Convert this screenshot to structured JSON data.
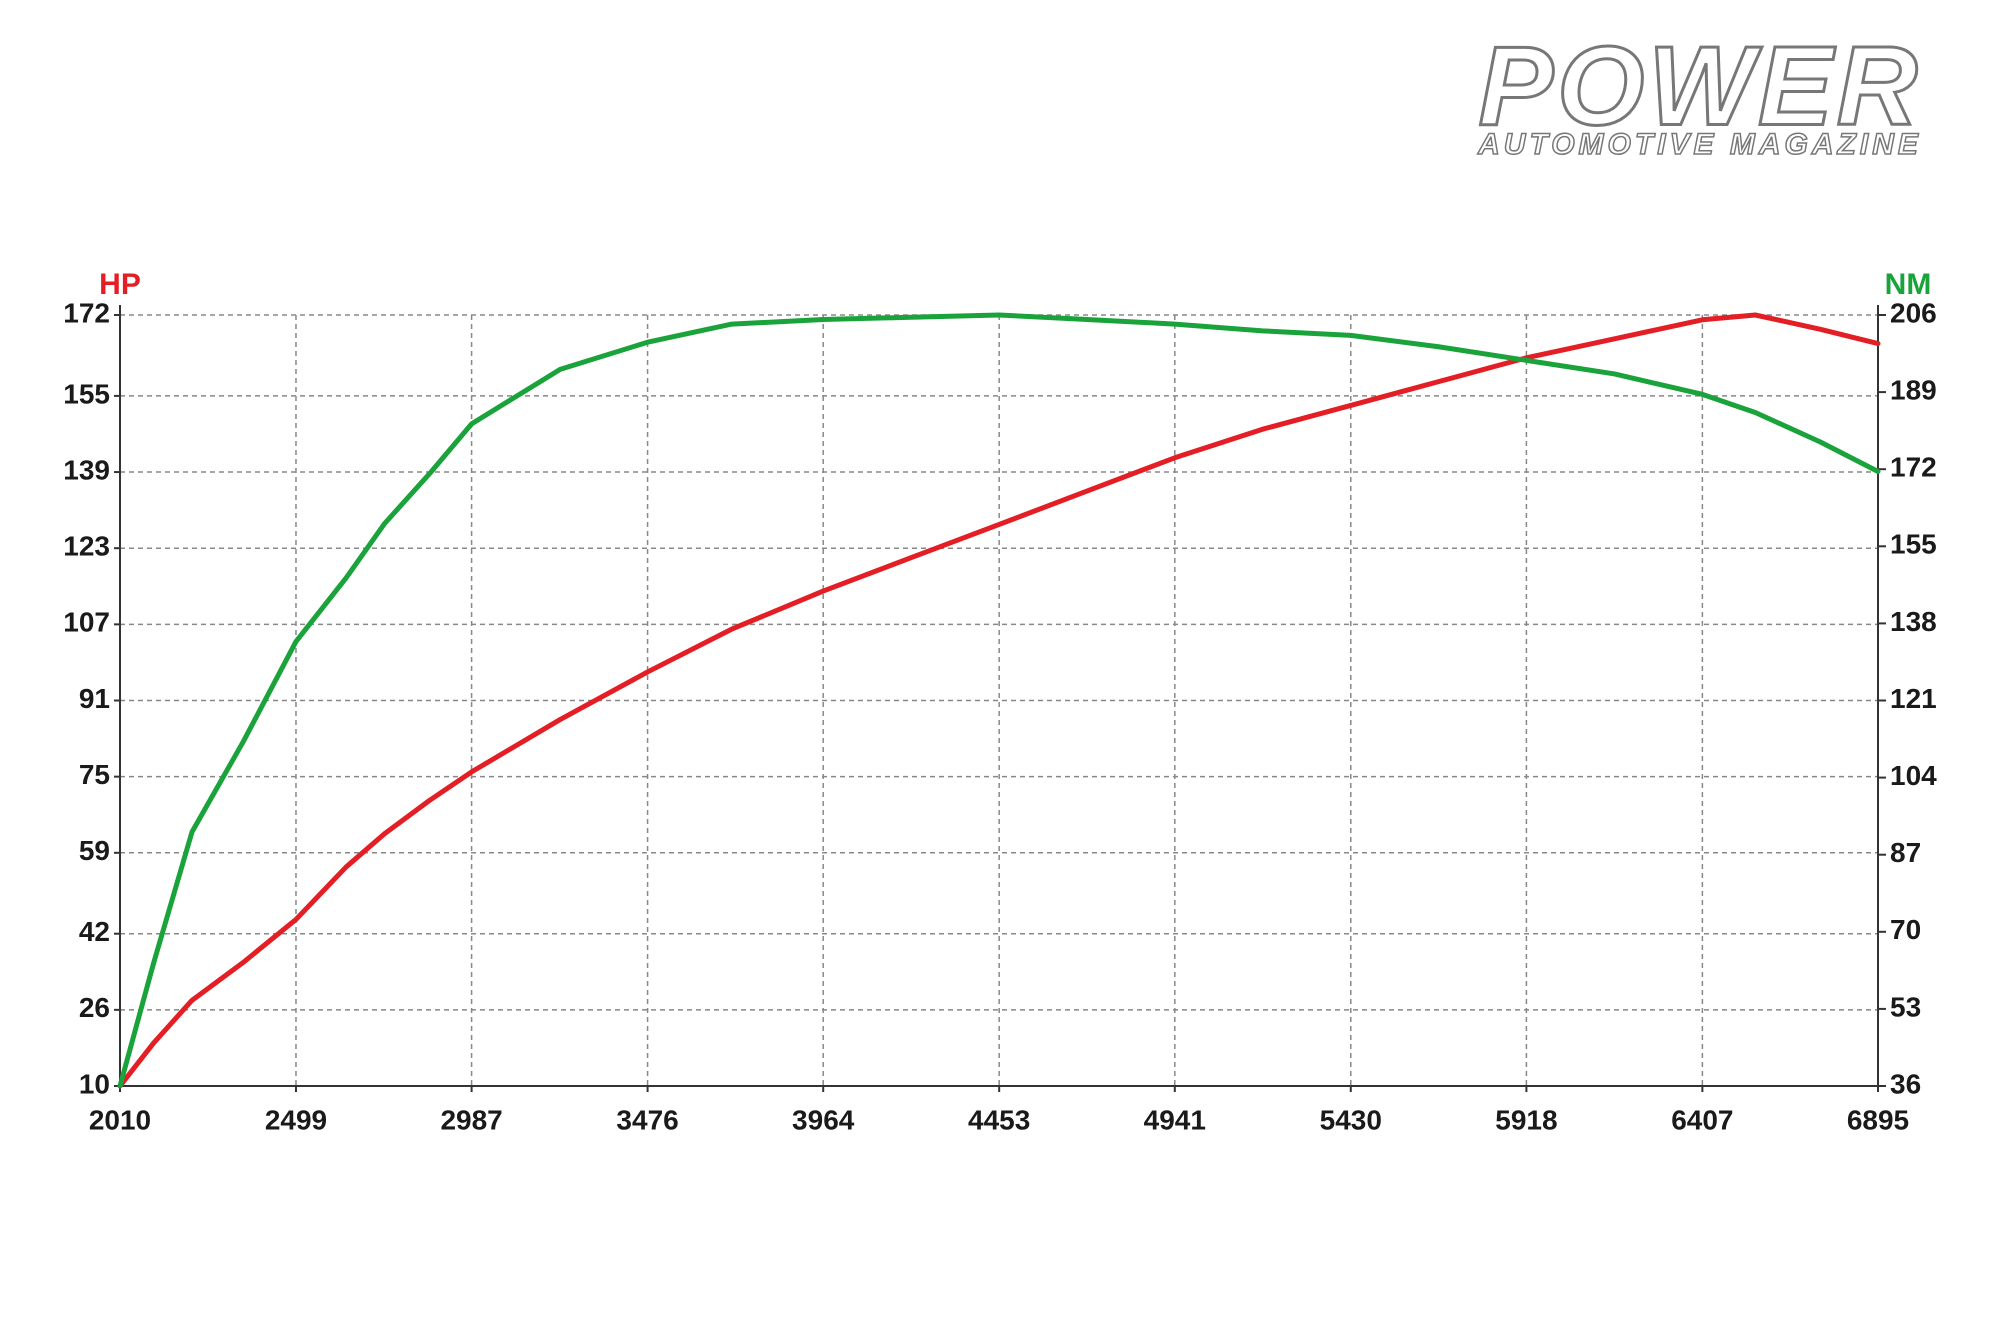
{
  "logo": {
    "title": "POWER",
    "subtitle": "AUTOMOTIVE MAGAZINE"
  },
  "chart_data": {
    "type": "line",
    "ylabel": "HP",
    "y2label": "NM",
    "x": [
      2010,
      2103,
      2210,
      2353,
      2499,
      2638,
      2745,
      2870,
      2987,
      3233,
      3476,
      3710,
      3964,
      4208,
      4453,
      4697,
      4941,
      5185,
      5430,
      5674,
      5918,
      6163,
      6407,
      6554,
      6735,
      6895
    ],
    "series": [
      {
        "color": "#e31e24",
        "axis": "y",
        "values": [
          10,
          19,
          28,
          36,
          45,
          56,
          63,
          70,
          76,
          87,
          97,
          106,
          114,
          121,
          128,
          135,
          142,
          148,
          153,
          158,
          163,
          167,
          171,
          172,
          169,
          166
        ]
      },
      {
        "color": "#1aa33a",
        "axis": "y2",
        "values": [
          36,
          63,
          92,
          112,
          134,
          148,
          160,
          171,
          182,
          194,
          200,
          204,
          205,
          205.5,
          206,
          205,
          204,
          202.5,
          201.5,
          199,
          196,
          193,
          188.5,
          184.5,
          178,
          171.5
        ]
      }
    ],
    "xlim": [
      2010,
      6895
    ],
    "xticks": [
      2010,
      2499,
      2987,
      3476,
      3964,
      4453,
      4941,
      5430,
      5918,
      6407,
      6895
    ],
    "ylim": [
      10,
      172
    ],
    "yticks": [
      10,
      26,
      42,
      59,
      75,
      91,
      107,
      123,
      139,
      155,
      172
    ],
    "y2lim": [
      36,
      206
    ],
    "y2ticks": [
      36,
      53,
      70,
      87,
      104,
      121,
      138,
      155,
      172,
      189,
      206
    ],
    "grid": true
  }
}
